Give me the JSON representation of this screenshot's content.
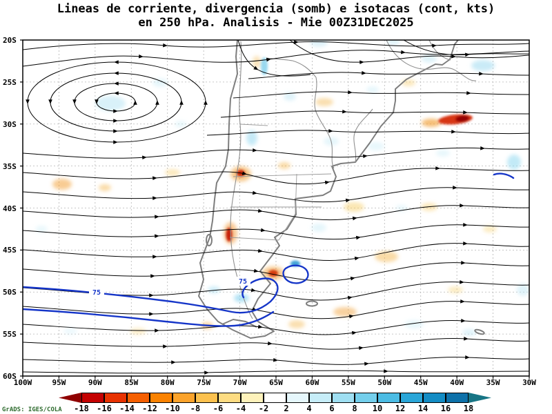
{
  "title": {
    "line1": "Lineas de corriente, divergencia (somb) e isotacas (cont, kts)",
    "line2": "en 250 hPa. Analisis - Mie 00Z31DEC2025"
  },
  "credit": "GrADS: IGES/COLA",
  "chart_data": {
    "type": "heatmap",
    "title": "Lineas de corriente, divergencia (somb) e isotacas (cont, kts)",
    "subtitle": "en 250 hPa. Analisis - Mie 00Z31DEC2025",
    "variable": "divergencia (sombreado), lineas de corriente, isotacas (kts)",
    "level": "250 hPa",
    "analysis_time": "Mie 00Z31DEC2025",
    "region": {
      "lat_range": [
        "20S",
        "60S"
      ],
      "lon_range": [
        "100W",
        "30W"
      ]
    },
    "grid": "dashed",
    "overlays": [
      "streamlines (black, arrowed)",
      "isotach contours (blue)"
    ],
    "isotach_contour_labels": [
      "75",
      "75"
    ],
    "y_axis": {
      "ticks": [
        "20S",
        "25S",
        "30S",
        "35S",
        "40S",
        "45S",
        "50S",
        "55S",
        "60S"
      ]
    },
    "x_axis": {
      "ticks": [
        "100W",
        "95W",
        "90W",
        "85W",
        "80W",
        "75W",
        "70W",
        "65W",
        "60W",
        "55W",
        "50W",
        "45W",
        "40W",
        "35W",
        "30W"
      ]
    },
    "colorbar": {
      "tick_labels": [
        "-18",
        "-16",
        "-14",
        "-12",
        "-10",
        "-8",
        "-6",
        "-4",
        "-2",
        "2",
        "4",
        "6",
        "8",
        "10",
        "12",
        "14",
        "16",
        "18"
      ],
      "colors": [
        "#8f0000",
        "#c40000",
        "#e83200",
        "#f55f00",
        "#fa8200",
        "#fba32b",
        "#fcc14e",
        "#fddc82",
        "#fef2bb",
        "#ffffff",
        "#e6f7fc",
        "#c6edf8",
        "#9fdff2",
        "#74cfec",
        "#4cbce4",
        "#2aa6d8",
        "#138cc4",
        "#0d71a9",
        "#177585"
      ]
    },
    "style": {
      "background": "#ffffff",
      "streamline_color": "#000000",
      "isotach_color": "#1535c8",
      "coastline_color": "#7d7d7d",
      "gridline_color": "#b4b4b4",
      "credit_color": "#2e6b2e"
    }
  }
}
